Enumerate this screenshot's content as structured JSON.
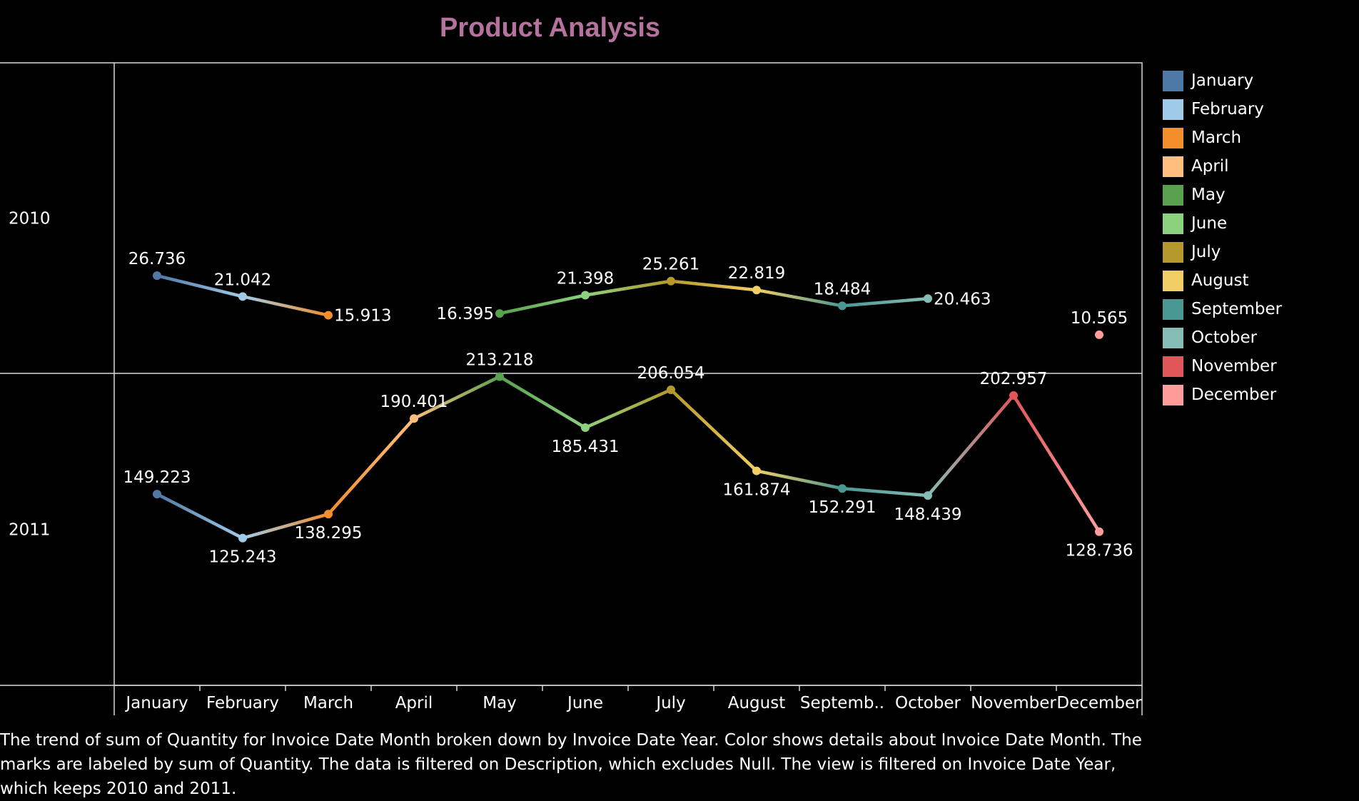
{
  "title": "Product Analysis",
  "caption": "The trend of sum of Quantity for Invoice Date Month broken down by Invoice Date Year.  Color shows details about Invoice Date Month.  The marks are labeled by sum of Quantity. The data is filtered on Description, which excludes Null. The view is filtered on Invoice Date Year, which keeps 2010 and 2011.",
  "legend": [
    {
      "label": "January",
      "color": "#4e79a7"
    },
    {
      "label": "February",
      "color": "#a0cbe8"
    },
    {
      "label": "March",
      "color": "#f28e2b"
    },
    {
      "label": "April",
      "color": "#ffbe7d"
    },
    {
      "label": "May",
      "color": "#59a14f"
    },
    {
      "label": "June",
      "color": "#8cd17d"
    },
    {
      "label": "July",
      "color": "#b6992d"
    },
    {
      "label": "August",
      "color": "#f1ce63"
    },
    {
      "label": "September",
      "color": "#499894"
    },
    {
      "label": "October",
      "color": "#86bcb6"
    },
    {
      "label": "November",
      "color": "#e15759"
    },
    {
      "label": "December",
      "color": "#ff9d9a"
    }
  ],
  "chart_data": {
    "type": "line",
    "categories": [
      "January",
      "February",
      "March",
      "April",
      "May",
      "June",
      "July",
      "August",
      "Septemb..",
      "October",
      "November",
      "December"
    ],
    "series": [
      {
        "name": "2010",
        "values": [
          26.736,
          21.042,
          15.913,
          null,
          16.395,
          21.398,
          25.261,
          22.819,
          18.484,
          20.463,
          null,
          10.565
        ],
        "labels": [
          "26.736",
          "21.042",
          "15.913",
          null,
          "16.395",
          "21.398",
          "25.261",
          "22.819",
          "18.484",
          "20.463",
          null,
          "10.565"
        ]
      },
      {
        "name": "2011",
        "values": [
          149.223,
          125.243,
          138.295,
          190.401,
          213.218,
          185.431,
          206.054,
          161.874,
          152.291,
          148.439,
          202.957,
          128.736
        ],
        "labels": [
          "149.223",
          "125.243",
          "138.295",
          "190.401",
          "213.218",
          "185.431",
          "206.054",
          "161.874",
          "152.291",
          "148.439",
          "202.957",
          "128.736"
        ]
      }
    ],
    "ylim_2010": [
      0,
      85
    ],
    "ylim_2011": [
      45,
      215
    ],
    "grid": false,
    "legend_position": "right"
  }
}
